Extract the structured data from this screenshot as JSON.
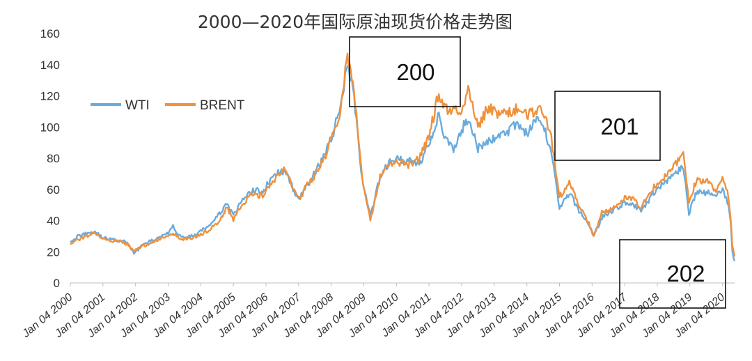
{
  "chart_data": {
    "type": "line",
    "title": "2000—2020年国际原油现货价格走势图",
    "xlabel": "",
    "ylabel": "",
    "ylim": [
      0,
      160
    ],
    "yticks": [
      0,
      20,
      40,
      60,
      80,
      100,
      120,
      140,
      160
    ],
    "xlim": [
      2000.0,
      2020.37
    ],
    "xtick_labels": [
      "Jan 04 2000",
      "Jan 04 2001",
      "Jan 04 2002",
      "Jan 04 2003",
      "Jan 04 2004",
      "Jan 04 2005",
      "Jan 04 2006",
      "Jan 04 2007",
      "Jan 04 2008",
      "Jan 04 2009",
      "Jan 04 2010",
      "Jan 04 2011",
      "Jan 04 2012",
      "Jan 04 2013",
      "Jan 04 2014",
      "Jan 04 2015",
      "Jan 04 2016",
      "Jan 04 2017",
      "Jan 04 2018",
      "Jan 04 2019",
      "Jan 04 2020"
    ],
    "xtick_values": [
      2000,
      2001,
      2002,
      2003,
      2004,
      2005,
      2006,
      2007,
      2008,
      2009,
      2010,
      2011,
      2012,
      2013,
      2014,
      2015,
      2016,
      2017,
      2018,
      2019,
      2020
    ],
    "grid": false,
    "legend_position": "left",
    "x": [
      2000.0,
      2000.25,
      2000.5,
      2000.75,
      2001.0,
      2001.25,
      2001.5,
      2001.75,
      2001.95,
      2002.25,
      2002.5,
      2002.75,
      2003.0,
      2003.15,
      2003.4,
      2003.75,
      2004.0,
      2004.25,
      2004.5,
      2004.8,
      2005.0,
      2005.25,
      2005.6,
      2005.9,
      2006.0,
      2006.3,
      2006.55,
      2006.9,
      2007.05,
      2007.3,
      2007.6,
      2007.9,
      2008.0,
      2008.25,
      2008.5,
      2008.7,
      2008.95,
      2009.2,
      2009.5,
      2009.8,
      2010.0,
      2010.4,
      2010.7,
      2011.0,
      2011.3,
      2011.5,
      2011.75,
      2012.0,
      2012.2,
      2012.5,
      2012.8,
      2013.0,
      2013.3,
      2013.7,
      2014.0,
      2014.3,
      2014.5,
      2014.75,
      2015.0,
      2015.3,
      2015.6,
      2015.9,
      2016.05,
      2016.3,
      2016.6,
      2016.9,
      2017.0,
      2017.3,
      2017.5,
      2017.9,
      2018.2,
      2018.5,
      2018.8,
      2018.97,
      2019.2,
      2019.5,
      2019.8,
      2020.0,
      2020.15,
      2020.25,
      2020.3,
      2020.37
    ],
    "series": [
      {
        "name": "WTI",
        "color": "#6AABDD",
        "values": [
          27,
          30,
          32,
          33,
          29,
          28,
          27,
          26,
          19,
          25,
          27,
          29,
          32,
          36,
          29,
          30,
          33,
          37,
          42,
          51,
          43,
          52,
          60,
          58,
          62,
          70,
          72,
          58,
          55,
          63,
          74,
          88,
          92,
          110,
          142,
          120,
          65,
          42,
          68,
          78,
          80,
          78,
          76,
          90,
          108,
          92,
          85,
          98,
          106,
          86,
          90,
          93,
          95,
          103,
          96,
          104,
          101,
          85,
          48,
          58,
          46,
          38,
          30,
          42,
          46,
          50,
          52,
          49,
          46,
          57,
          64,
          70,
          74,
          45,
          58,
          58,
          57,
          60,
          52,
          40,
          20,
          14
        ]
      },
      {
        "name": "BRENT",
        "color": "#F0913C",
        "values": [
          25,
          28,
          30,
          32,
          28,
          27,
          27,
          25,
          20,
          24,
          26,
          28,
          30,
          32,
          28,
          29,
          31,
          34,
          38,
          48,
          41,
          50,
          57,
          56,
          60,
          66,
          74,
          58,
          55,
          64,
          72,
          85,
          94,
          108,
          144,
          125,
          68,
          40,
          68,
          76,
          78,
          76,
          80,
          94,
          122,
          112,
          110,
          112,
          124,
          100,
          112,
          110,
          108,
          112,
          108,
          110,
          110,
          92,
          55,
          65,
          50,
          38,
          30,
          45,
          47,
          52,
          55,
          53,
          48,
          62,
          68,
          76,
          82,
          52,
          66,
          65,
          60,
          66,
          58,
          42,
          24,
          17
        ]
      }
    ],
    "annotations": [
      "200",
      "201",
      "202"
    ]
  }
}
